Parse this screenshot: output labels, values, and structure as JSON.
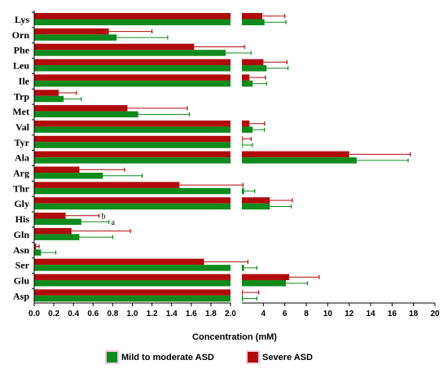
{
  "colors": {
    "mild": "#0f8a1c",
    "severe": "#b00a0a",
    "error_mild": "#0f8a1c",
    "error_severe": "#b00a0a",
    "overlap": "#7a4a18"
  },
  "chart_data": {
    "type": "bar",
    "orientation": "horizontal",
    "xlabel": "Concentration (mM)",
    "axis_break": 2.0,
    "xlim_left": [
      0,
      2.0
    ],
    "xlim_right": [
      2.0,
      20
    ],
    "xticks_left": [
      "0.0",
      "0.2",
      "0.4",
      "0.6",
      "0.8",
      "1.0",
      "1.2",
      "1.4",
      "1.6",
      "1.8",
      "2.0"
    ],
    "xticks_right": [
      "2",
      "4",
      "6",
      "8",
      "10",
      "12",
      "14",
      "16",
      "18",
      "20"
    ],
    "categories": [
      "Lys",
      "Orn",
      "Phe",
      "Leu",
      "Ile",
      "Trp",
      "Met",
      "Val",
      "Tyr",
      "Ala",
      "Arg",
      "Thr",
      "Gly",
      "His",
      "Gln",
      "Asn",
      "Ser",
      "Glu",
      "Asp"
    ],
    "series": [
      {
        "name": "Severe ASD",
        "color_key": "severe",
        "values": [
          3.9,
          0.76,
          1.63,
          4.0,
          2.7,
          0.25,
          0.95,
          2.7,
          2.06,
          12.0,
          0.46,
          1.48,
          4.6,
          0.32,
          0.38,
          0.02,
          1.73,
          6.4,
          2.06
        ],
        "errors": [
          2.1,
          0.44,
          0.6,
          2.2,
          1.5,
          0.18,
          0.61,
          1.4,
          0.8,
          5.7,
          0.46,
          0.62,
          2.1,
          0.34,
          0.6,
          0.03,
          0.83,
          2.8,
          1.5
        ]
      },
      {
        "name": "Mild to moderate ASD",
        "color_key": "mild",
        "values": [
          4.1,
          0.84,
          1.95,
          4.3,
          3.0,
          0.3,
          1.06,
          3.0,
          2.06,
          12.7,
          0.7,
          2.2,
          4.6,
          0.48,
          0.46,
          0.07,
          2.2,
          6.1,
          2.1
        ],
        "errors": [
          2.0,
          0.52,
          0.9,
          2.0,
          1.3,
          0.18,
          0.52,
          1.1,
          0.9,
          4.8,
          0.4,
          1.0,
          2.0,
          0.28,
          0.34,
          0.15,
          1.2,
          2.0,
          1.3
        ]
      }
    ],
    "annotations": [
      {
        "category": "His",
        "series": "Severe ASD",
        "text": "b"
      },
      {
        "category": "His",
        "series": "Mild to moderate ASD",
        "text": "a"
      }
    ]
  }
}
